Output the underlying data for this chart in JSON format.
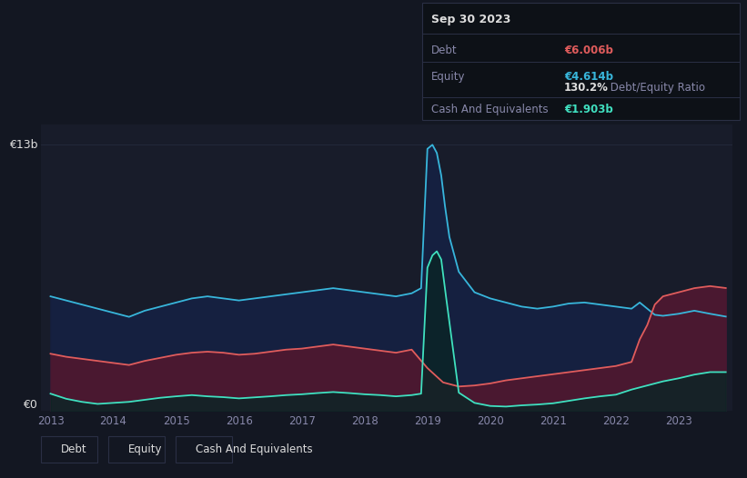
{
  "bg_color": "#131722",
  "plot_bg_color": "#181c2a",
  "title": "Sep 30 2023",
  "debt_label": "Debt",
  "equity_label": "Equity",
  "cash_label": "Cash And Equivalents",
  "debt_value": "€6.006b",
  "equity_value": "€4.614b",
  "ratio_bold": "130.2%",
  "ratio_rest": " Debt/Equity Ratio",
  "cash_value": "€1.903b",
  "ylabel_top": "€13b",
  "ylabel_zero": "€0",
  "debt_color": "#e05c5c",
  "equity_color": "#38b6db",
  "cash_color": "#40e0c0",
  "debt_fill_color": "#4a1830",
  "equity_fill_color": "#152040",
  "cash_fill_color": "#0a2525",
  "grid_color": "#252b3d",
  "text_color": "#8888aa",
  "white_color": "#dddddd",
  "box_bg": "#0d1117",
  "box_border": "#2a2f45",
  "x_ticks": [
    2013,
    2014,
    2015,
    2016,
    2017,
    2018,
    2019,
    2020,
    2021,
    2022,
    2023
  ],
  "year_start": 2012.85,
  "year_end": 2023.85,
  "ymax": 14.0,
  "equity_data": {
    "x": [
      2013.0,
      2013.25,
      2013.5,
      2013.75,
      2014.0,
      2014.25,
      2014.5,
      2014.75,
      2015.0,
      2015.25,
      2015.5,
      2015.75,
      2016.0,
      2016.25,
      2016.5,
      2016.75,
      2017.0,
      2017.25,
      2017.5,
      2017.75,
      2018.0,
      2018.25,
      2018.5,
      2018.75,
      2018.9,
      2019.0,
      2019.08,
      2019.15,
      2019.22,
      2019.28,
      2019.35,
      2019.5,
      2019.75,
      2020.0,
      2020.25,
      2020.5,
      2020.75,
      2021.0,
      2021.25,
      2021.5,
      2021.75,
      2022.0,
      2022.25,
      2022.38,
      2022.5,
      2022.62,
      2022.75,
      2023.0,
      2023.25,
      2023.5,
      2023.75
    ],
    "y": [
      5.6,
      5.4,
      5.2,
      5.0,
      4.8,
      4.6,
      4.9,
      5.1,
      5.3,
      5.5,
      5.6,
      5.5,
      5.4,
      5.5,
      5.6,
      5.7,
      5.8,
      5.9,
      6.0,
      5.9,
      5.8,
      5.7,
      5.6,
      5.75,
      6.0,
      12.8,
      13.0,
      12.6,
      11.5,
      10.0,
      8.5,
      6.8,
      5.8,
      5.5,
      5.3,
      5.1,
      5.0,
      5.1,
      5.25,
      5.3,
      5.2,
      5.1,
      5.0,
      5.3,
      5.0,
      4.7,
      4.65,
      4.75,
      4.9,
      4.75,
      4.614
    ]
  },
  "debt_data": {
    "x": [
      2013.0,
      2013.25,
      2013.5,
      2013.75,
      2014.0,
      2014.25,
      2014.5,
      2014.75,
      2015.0,
      2015.25,
      2015.5,
      2015.75,
      2016.0,
      2016.25,
      2016.5,
      2016.75,
      2017.0,
      2017.25,
      2017.5,
      2017.75,
      2018.0,
      2018.25,
      2018.5,
      2018.75,
      2019.0,
      2019.25,
      2019.5,
      2019.75,
      2020.0,
      2020.25,
      2020.5,
      2020.75,
      2021.0,
      2021.25,
      2021.5,
      2021.75,
      2022.0,
      2022.25,
      2022.38,
      2022.5,
      2022.62,
      2022.75,
      2023.0,
      2023.25,
      2023.5,
      2023.75
    ],
    "y": [
      2.8,
      2.65,
      2.55,
      2.45,
      2.35,
      2.25,
      2.45,
      2.6,
      2.75,
      2.85,
      2.9,
      2.85,
      2.75,
      2.8,
      2.9,
      3.0,
      3.05,
      3.15,
      3.25,
      3.15,
      3.05,
      2.95,
      2.85,
      3.0,
      2.1,
      1.4,
      1.2,
      1.25,
      1.35,
      1.5,
      1.6,
      1.7,
      1.8,
      1.9,
      2.0,
      2.1,
      2.2,
      2.4,
      3.5,
      4.2,
      5.2,
      5.6,
      5.8,
      6.0,
      6.1,
      6.006
    ]
  },
  "cash_data": {
    "x": [
      2013.0,
      2013.25,
      2013.5,
      2013.75,
      2014.0,
      2014.25,
      2014.5,
      2014.75,
      2015.0,
      2015.25,
      2015.5,
      2015.75,
      2016.0,
      2016.25,
      2016.5,
      2016.75,
      2017.0,
      2017.25,
      2017.5,
      2017.75,
      2018.0,
      2018.25,
      2018.5,
      2018.75,
      2018.9,
      2019.0,
      2019.08,
      2019.15,
      2019.22,
      2019.3,
      2019.5,
      2019.75,
      2020.0,
      2020.25,
      2020.5,
      2020.75,
      2021.0,
      2021.25,
      2021.5,
      2021.75,
      2022.0,
      2022.25,
      2022.5,
      2022.75,
      2023.0,
      2023.25,
      2023.5,
      2023.75
    ],
    "y": [
      0.85,
      0.6,
      0.45,
      0.35,
      0.4,
      0.45,
      0.55,
      0.65,
      0.72,
      0.78,
      0.72,
      0.68,
      0.62,
      0.67,
      0.72,
      0.78,
      0.82,
      0.88,
      0.93,
      0.88,
      0.82,
      0.78,
      0.72,
      0.78,
      0.85,
      7.0,
      7.6,
      7.8,
      7.4,
      5.5,
      0.9,
      0.4,
      0.25,
      0.22,
      0.28,
      0.32,
      0.38,
      0.5,
      0.62,
      0.72,
      0.8,
      1.05,
      1.25,
      1.45,
      1.6,
      1.78,
      1.903,
      1.903
    ]
  }
}
